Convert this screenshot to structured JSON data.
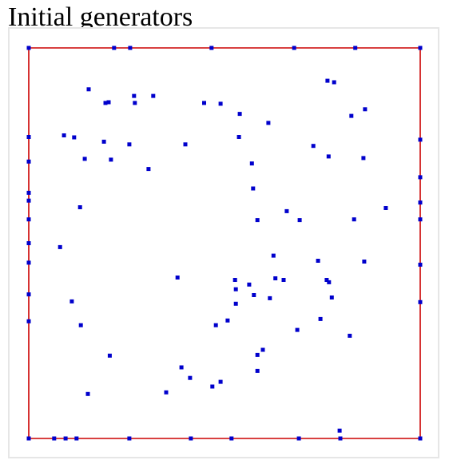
{
  "title": "Initial generators",
  "colors": {
    "boundary": "#cc0000",
    "generator": "#0000cc",
    "frame": "#e6e6e6"
  },
  "chart_data": {
    "type": "scatter",
    "title": "Initial generators",
    "xlim": [
      0,
      1
    ],
    "ylim": [
      0,
      1
    ],
    "boundary": {
      "shape": "square",
      "corners": [
        [
          0,
          0
        ],
        [
          1,
          0
        ],
        [
          1,
          1
        ],
        [
          0,
          1
        ]
      ]
    },
    "boundary_generators": [
      [
        0.0,
        1.0
      ],
      [
        0.218,
        1.0
      ],
      [
        0.259,
        1.0
      ],
      [
        0.467,
        1.0
      ],
      [
        0.678,
        1.0
      ],
      [
        0.834,
        1.0
      ],
      [
        1.0,
        1.0
      ],
      [
        0.0,
        0.0
      ],
      [
        0.065,
        0.0
      ],
      [
        0.094,
        0.0
      ],
      [
        0.122,
        0.0
      ],
      [
        0.257,
        0.0
      ],
      [
        0.414,
        0.0
      ],
      [
        0.518,
        0.0
      ],
      [
        0.69,
        0.0
      ],
      [
        0.796,
        0.0
      ],
      [
        1.0,
        0.0
      ],
      [
        0.0,
        0.772
      ],
      [
        0.0,
        0.709
      ],
      [
        0.0,
        0.629
      ],
      [
        0.0,
        0.609
      ],
      [
        0.0,
        0.561
      ],
      [
        0.0,
        0.5
      ],
      [
        0.0,
        0.45
      ],
      [
        0.0,
        0.369
      ],
      [
        0.0,
        0.3
      ],
      [
        1.0,
        0.765
      ],
      [
        1.0,
        0.669
      ],
      [
        1.0,
        0.604
      ],
      [
        1.0,
        0.561
      ],
      [
        1.0,
        0.445
      ],
      [
        1.0,
        0.349
      ]
    ],
    "interior_generators": [
      [
        0.153,
        0.894
      ],
      [
        0.196,
        0.859
      ],
      [
        0.204,
        0.861
      ],
      [
        0.269,
        0.877
      ],
      [
        0.271,
        0.859
      ],
      [
        0.318,
        0.877
      ],
      [
        0.448,
        0.859
      ],
      [
        0.49,
        0.857
      ],
      [
        0.539,
        0.831
      ],
      [
        0.612,
        0.808
      ],
      [
        0.763,
        0.916
      ],
      [
        0.78,
        0.912
      ],
      [
        0.824,
        0.826
      ],
      [
        0.859,
        0.843
      ],
      [
        0.09,
        0.776
      ],
      [
        0.116,
        0.771
      ],
      [
        0.192,
        0.76
      ],
      [
        0.257,
        0.753
      ],
      [
        0.537,
        0.772
      ],
      [
        0.4,
        0.753
      ],
      [
        0.727,
        0.749
      ],
      [
        0.143,
        0.716
      ],
      [
        0.21,
        0.714
      ],
      [
        0.306,
        0.69
      ],
      [
        0.57,
        0.704
      ],
      [
        0.766,
        0.722
      ],
      [
        0.855,
        0.718
      ],
      [
        0.573,
        0.64
      ],
      [
        0.659,
        0.582
      ],
      [
        0.912,
        0.59
      ],
      [
        0.131,
        0.592
      ],
      [
        0.584,
        0.559
      ],
      [
        0.692,
        0.559
      ],
      [
        0.831,
        0.561
      ],
      [
        0.08,
        0.49
      ],
      [
        0.625,
        0.468
      ],
      [
        0.739,
        0.455
      ],
      [
        0.857,
        0.453
      ],
      [
        0.38,
        0.412
      ],
      [
        0.527,
        0.406
      ],
      [
        0.63,
        0.41
      ],
      [
        0.651,
        0.406
      ],
      [
        0.563,
        0.394
      ],
      [
        0.761,
        0.406
      ],
      [
        0.767,
        0.4
      ],
      [
        0.529,
        0.382
      ],
      [
        0.575,
        0.367
      ],
      [
        0.616,
        0.359
      ],
      [
        0.11,
        0.351
      ],
      [
        0.529,
        0.345
      ],
      [
        0.774,
        0.361
      ],
      [
        0.508,
        0.302
      ],
      [
        0.478,
        0.29
      ],
      [
        0.745,
        0.306
      ],
      [
        0.133,
        0.29
      ],
      [
        0.686,
        0.278
      ],
      [
        0.82,
        0.263
      ],
      [
        0.598,
        0.227
      ],
      [
        0.584,
        0.214
      ],
      [
        0.207,
        0.212
      ],
      [
        0.39,
        0.182
      ],
      [
        0.584,
        0.173
      ],
      [
        0.412,
        0.155
      ],
      [
        0.49,
        0.145
      ],
      [
        0.469,
        0.133
      ],
      [
        0.351,
        0.118
      ],
      [
        0.151,
        0.114
      ],
      [
        0.794,
        0.02
      ]
    ]
  }
}
